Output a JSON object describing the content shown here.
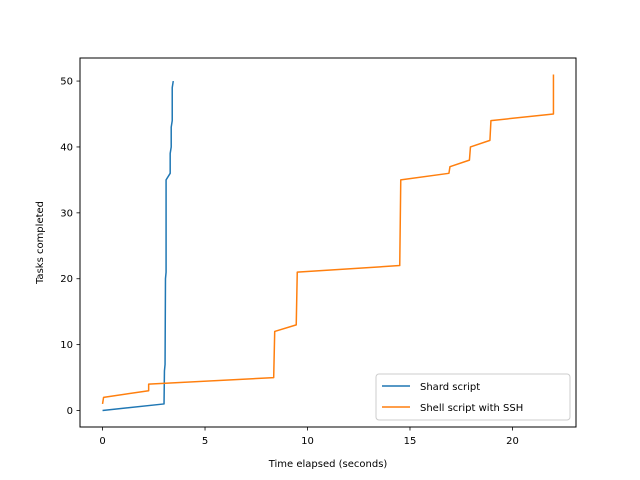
{
  "chart_data": {
    "type": "line",
    "title": "",
    "xlabel": "Time elapsed (seconds)",
    "ylabel": "Tasks completed",
    "xlim": [
      -1.1,
      23.1
    ],
    "ylim": [
      -2.5,
      53.5
    ],
    "xticks": [
      0,
      5,
      10,
      15,
      20
    ],
    "yticks": [
      0,
      10,
      20,
      30,
      40,
      50
    ],
    "grid": false,
    "legend_position": "lower-right",
    "series": [
      {
        "name": "Shard script",
        "color": "#1f77b4",
        "points": [
          [
            0,
            0
          ],
          [
            3.0,
            1
          ],
          [
            3.02,
            6
          ],
          [
            3.05,
            7
          ],
          [
            3.07,
            20
          ],
          [
            3.1,
            21
          ],
          [
            3.1,
            35
          ],
          [
            3.3,
            36
          ],
          [
            3.3,
            39
          ],
          [
            3.35,
            40
          ],
          [
            3.35,
            43
          ],
          [
            3.4,
            44
          ],
          [
            3.4,
            49
          ],
          [
            3.45,
            50
          ]
        ]
      },
      {
        "name": "Shell script with SSH",
        "color": "#ff7f0e",
        "points": [
          [
            0,
            1
          ],
          [
            0.05,
            2
          ],
          [
            2.25,
            3
          ],
          [
            2.25,
            4
          ],
          [
            8.35,
            5
          ],
          [
            8.4,
            12
          ],
          [
            9.45,
            13
          ],
          [
            9.5,
            21
          ],
          [
            14.5,
            22
          ],
          [
            14.55,
            35
          ],
          [
            16.9,
            36
          ],
          [
            16.95,
            37
          ],
          [
            17.9,
            38
          ],
          [
            17.95,
            40
          ],
          [
            18.9,
            41
          ],
          [
            18.95,
            44
          ],
          [
            22.0,
            45
          ],
          [
            22.0,
            51
          ]
        ]
      }
    ]
  }
}
